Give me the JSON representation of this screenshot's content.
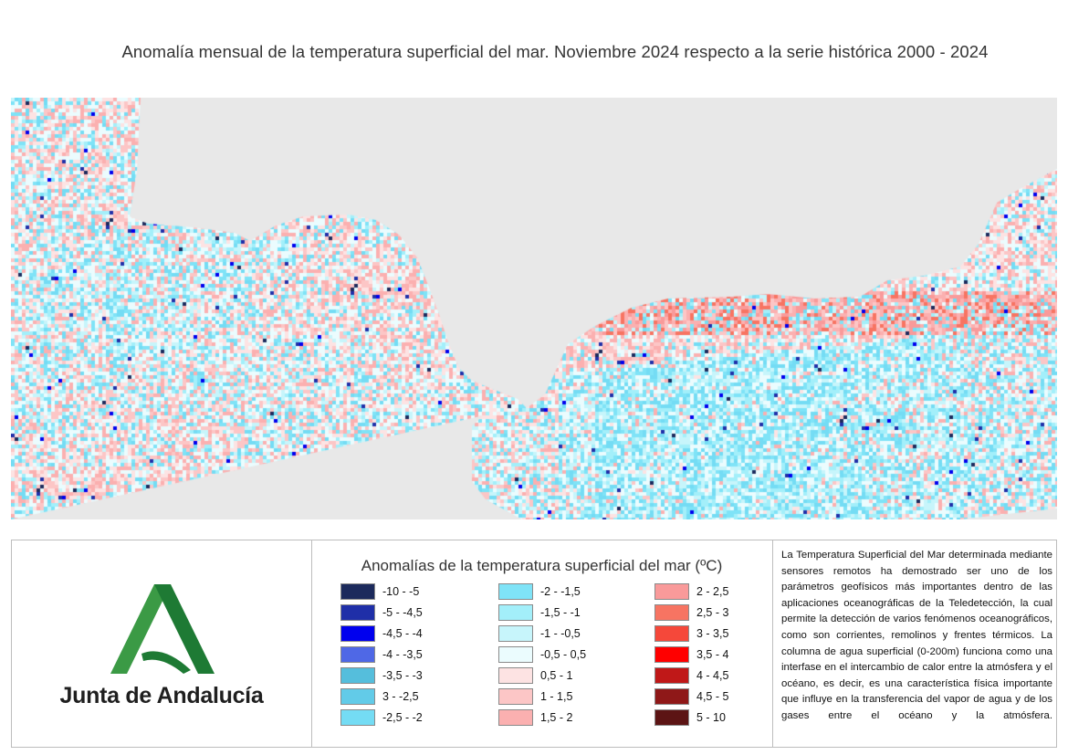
{
  "title": "Anomalía mensual de la temperatura superficial del mar. Noviembre 2024 respecto a la serie histórica 2000 - 2024",
  "map": {
    "land_color": "#e8e8e8",
    "description": ""
  },
  "logo": {
    "name": "Junta de Andalucía",
    "icon": "junta-andalucia-logo-icon",
    "colors": {
      "green_light": "#3b9a45",
      "green_dark": "#1e7a34"
    }
  },
  "legend": {
    "title": "Anomalías de la temperatura superficial del mar (ºC)",
    "columns": [
      [
        {
          "label": "-10 - -5",
          "color": "#1c2a5c"
        },
        {
          "label": "-5 - -4,5",
          "color": "#1f2fa8"
        },
        {
          "label": "-4,5 - -4",
          "color": "#0000ee"
        },
        {
          "label": "-4 - -3,5",
          "color": "#4f68e6"
        },
        {
          "label": "-3,5 - -3",
          "color": "#55bedc"
        },
        {
          "label": "3 - -2,5",
          "color": "#62cbe8"
        },
        {
          "label": "-2,5 - -2",
          "color": "#74dcf4"
        }
      ],
      [
        {
          "label": "-2 - -1,5",
          "color": "#7fe3f7"
        },
        {
          "label": "-1,5 - -1",
          "color": "#a3effa"
        },
        {
          "label": "-1 - -0,5",
          "color": "#c7f5fb"
        },
        {
          "label": "-0,5 - 0,5",
          "color": "#ebfcfe"
        },
        {
          "label": "0,5 - 1",
          "color": "#fde3e3"
        },
        {
          "label": "1 - 1,5",
          "color": "#fcc6c6"
        },
        {
          "label": "1,5 - 2",
          "color": "#fbb0b0"
        }
      ],
      [
        {
          "label": "2 - 2,5",
          "color": "#f99a9a"
        },
        {
          "label": "2,5 - 3",
          "color": "#f77462"
        },
        {
          "label": "3 - 3,5",
          "color": "#f5483a"
        },
        {
          "label": "3,5 - 4",
          "color": "#ff0000"
        },
        {
          "label": "4 - 4,5",
          "color": "#c01818"
        },
        {
          "label": "4,5 - 5",
          "color": "#8f1818"
        },
        {
          "label": "5 - 10",
          "color": "#5c1414"
        }
      ]
    ]
  },
  "description": "La Temperatura Superficial del Mar determinada mediante sensores remotos ha demostrado ser uno de los parámetros geofísicos más importantes dentro de las aplicaciones oceanográficas de la Teledetección, la cual permite la detección de varios fenómenos oceanográficos, como son corrientes, remolinos y frentes térmicos. La columna de agua superficial (0-200m) funciona como una interfase en el intercambio de calor entre la atmósfera y el océano, es decir, es una característica física importante que influye en la transferencia del vapor de agua y de los gases entre el océano y la atmósfera."
}
